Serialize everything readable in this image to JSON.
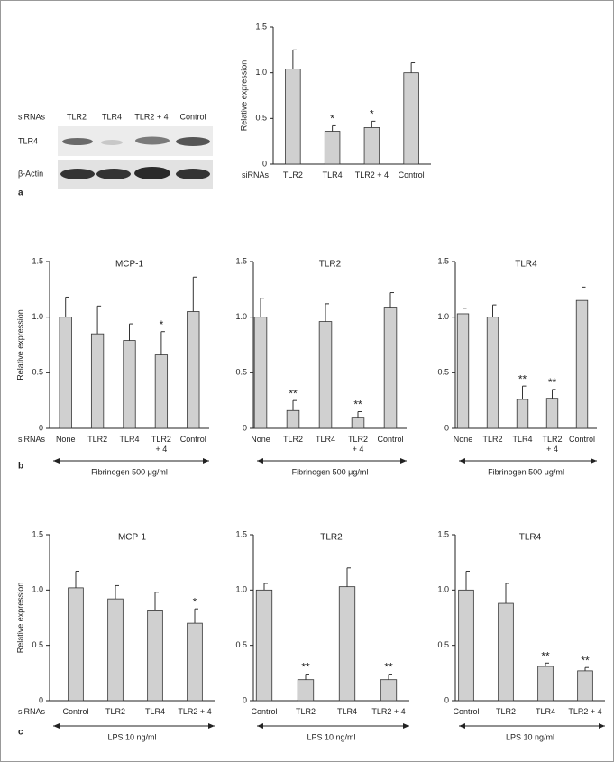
{
  "panel_labels": [
    "a",
    "b",
    "c"
  ],
  "blot": {
    "x_row_label": "siRNAs",
    "lane_labels": [
      "TLR2",
      "TLR4",
      "TLR2 + 4",
      "Control"
    ],
    "row_labels": [
      "TLR4",
      "β-Actin"
    ]
  },
  "chart_data": [
    {
      "type": "bar",
      "y_label": "Relative expression",
      "x_row_label": "siRNAs",
      "categories": [
        "TLR2",
        "TLR4",
        "TLR2 + 4",
        "Control"
      ],
      "values": [
        1.04,
        0.36,
        0.4,
        1.0
      ],
      "errors": [
        0.21,
        0.06,
        0.07,
        0.11
      ],
      "significance": [
        null,
        "*",
        "*",
        null
      ],
      "color": "#d0d0d0",
      "ylim": [
        0,
        1.5
      ],
      "yticks": [
        0,
        0.5,
        {
          "value": 1,
          "label": "1.0"
        },
        1.5
      ]
    },
    {
      "type": "bar",
      "title": "MCP-1",
      "y_label": "Relative expression",
      "x_row_label": "siRNAs",
      "treatment": "Fibrinogen 500 μg/ml",
      "categories": [
        "None",
        "TLR2",
        "TLR4",
        "TLR2\n+ 4",
        "Control"
      ],
      "values": [
        1.0,
        0.85,
        0.79,
        0.66,
        1.05
      ],
      "errors": [
        0.18,
        0.25,
        0.15,
        0.21,
        0.31
      ],
      "significance": [
        null,
        null,
        null,
        "*",
        null
      ],
      "color": "#d0d0d0",
      "ylim": [
        0,
        1.5
      ],
      "yticks": [
        0,
        0.5,
        {
          "value": 1,
          "label": "1.0"
        },
        1.5
      ]
    },
    {
      "type": "bar",
      "title": "TLR2",
      "treatment": "Fibrinogen 500 μg/ml",
      "categories": [
        "None",
        "TLR2",
        "TLR4",
        "TLR2\n+ 4",
        "Control"
      ],
      "values": [
        1.0,
        0.16,
        0.96,
        0.1,
        1.09
      ],
      "errors": [
        0.17,
        0.09,
        0.16,
        0.05,
        0.13
      ],
      "significance": [
        null,
        "**",
        null,
        "**",
        null
      ],
      "color": "#d0d0d0",
      "ylim": [
        0,
        1.5
      ],
      "yticks": [
        0,
        0.5,
        {
          "value": 1,
          "label": "1.0"
        },
        1.5
      ]
    },
    {
      "type": "bar",
      "title": "TLR4",
      "treatment": "Fibrinogen 500 μg/ml",
      "categories": [
        "None",
        "TLR2",
        "TLR4",
        "TLR2\n+ 4",
        "Control"
      ],
      "values": [
        1.03,
        1.0,
        0.26,
        0.27,
        1.15
      ],
      "errors": [
        0.05,
        0.11,
        0.12,
        0.08,
        0.12
      ],
      "significance": [
        null,
        null,
        "**",
        "**",
        null
      ],
      "color": "#d0d0d0",
      "ylim": [
        0,
        1.5
      ],
      "yticks": [
        0,
        0.5,
        {
          "value": 1,
          "label": "1.0"
        },
        1.5
      ]
    },
    {
      "type": "bar",
      "title": "MCP-1",
      "y_label": "Relative expression",
      "x_row_label": "siRNAs",
      "treatment": "LPS 10 ng/ml",
      "categories": [
        "Control",
        "TLR2",
        "TLR4",
        "TLR2 + 4"
      ],
      "values": [
        1.02,
        0.92,
        0.82,
        0.7
      ],
      "errors": [
        0.15,
        0.12,
        0.16,
        0.13
      ],
      "significance": [
        null,
        null,
        null,
        "*"
      ],
      "color": "#d0d0d0",
      "ylim": [
        0,
        1.5
      ],
      "yticks": [
        0,
        0.5,
        {
          "value": 1,
          "label": "1.0"
        },
        1.5
      ]
    },
    {
      "type": "bar",
      "title": "TLR2",
      "treatment": "LPS 10 ng/ml",
      "categories": [
        "Control",
        "TLR2",
        "TLR4",
        "TLR2 + 4"
      ],
      "values": [
        1.0,
        0.19,
        1.03,
        0.19
      ],
      "errors": [
        0.06,
        0.05,
        0.17,
        0.05
      ],
      "significance": [
        null,
        "**",
        null,
        "**"
      ],
      "color": "#d0d0d0",
      "ylim": [
        0,
        1.5
      ],
      "yticks": [
        0,
        0.5,
        {
          "value": 1,
          "label": "1.0"
        },
        1.5
      ]
    },
    {
      "type": "bar",
      "title": "TLR4",
      "treatment": "LPS 10 ng/ml",
      "categories": [
        "Control",
        "TLR2",
        "TLR4",
        "TLR2 + 4"
      ],
      "values": [
        1.0,
        0.88,
        0.31,
        0.27
      ],
      "errors": [
        0.17,
        0.18,
        0.03,
        0.03
      ],
      "significance": [
        null,
        null,
        "**",
        "**"
      ],
      "color": "#d0d0d0",
      "ylim": [
        0,
        1.5
      ],
      "yticks": [
        0,
        0.5,
        {
          "value": 1,
          "label": "1.0"
        },
        1.5
      ]
    }
  ]
}
